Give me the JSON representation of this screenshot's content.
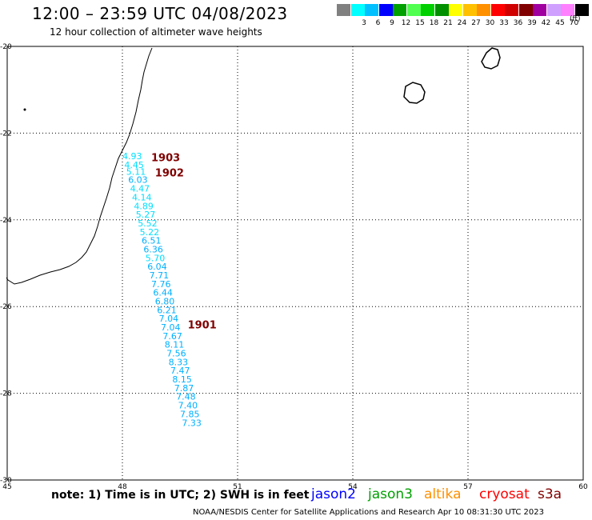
{
  "title": "12:00 – 23:59 UTC 04/08/2023",
  "subtitle": "12 hour collection of altimeter wave heights",
  "color_scale": {
    "unit": "(ft)",
    "swatches": [
      {
        "label": "",
        "color": "#808080"
      },
      {
        "label": "3",
        "color": "#00ffff"
      },
      {
        "label": "6",
        "color": "#00c0ff"
      },
      {
        "label": "9",
        "color": "#0000ff"
      },
      {
        "label": "12",
        "color": "#00a000"
      },
      {
        "label": "15",
        "color": "#50ff50"
      },
      {
        "label": "18",
        "color": "#00d000"
      },
      {
        "label": "21",
        "color": "#009000"
      },
      {
        "label": "24",
        "color": "#ffff00"
      },
      {
        "label": "27",
        "color": "#ffc000"
      },
      {
        "label": "30",
        "color": "#ff9000"
      },
      {
        "label": "33",
        "color": "#ff0000"
      },
      {
        "label": "36",
        "color": "#d00000"
      },
      {
        "label": "39",
        "color": "#800000"
      },
      {
        "label": "42",
        "color": "#a000a0"
      },
      {
        "label": "45",
        "color": "#d0a0ff"
      },
      {
        "label": "70",
        "color": "#ff80ff"
      },
      {
        "label": "",
        "color": "#000000"
      }
    ]
  },
  "map": {
    "lon_range": [
      45,
      60
    ],
    "lat_range": [
      -30,
      -20
    ],
    "lon_ticks": [
      "45",
      "48",
      "51",
      "54",
      "57",
      "60"
    ],
    "lat_ticks": [
      "-20",
      "-22",
      "-24",
      "-26",
      "-28",
      "-30"
    ],
    "gridlines": "dotted",
    "passes": [
      {
        "label": "1903",
        "lon": 48.75,
        "lat": -22.65
      },
      {
        "label": "1902",
        "lon": 48.85,
        "lat": -23.0
      },
      {
        "label": "1901",
        "lon": 49.7,
        "lat": -26.5
      }
    ],
    "observations": [
      {
        "value": "4.93",
        "lon": 48.0,
        "lat": -22.6
      },
      {
        "value": "4.45",
        "lon": 48.05,
        "lat": -22.8
      },
      {
        "value": "5.11",
        "lon": 48.1,
        "lat": -22.96
      },
      {
        "value": "6.03",
        "lon": 48.15,
        "lat": -23.15
      },
      {
        "value": "4.47",
        "lon": 48.2,
        "lat": -23.35
      },
      {
        "value": "4.14",
        "lon": 48.25,
        "lat": -23.55
      },
      {
        "value": "4.89",
        "lon": 48.3,
        "lat": -23.75
      },
      {
        "value": "5.27",
        "lon": 48.35,
        "lat": -23.95
      },
      {
        "value": "5.52",
        "lon": 48.4,
        "lat": -24.15
      },
      {
        "value": "5.22",
        "lon": 48.45,
        "lat": -24.35
      },
      {
        "value": "6.51",
        "lon": 48.5,
        "lat": -24.55
      },
      {
        "value": "6.36",
        "lon": 48.55,
        "lat": -24.75
      },
      {
        "value": "5.70",
        "lon": 48.6,
        "lat": -24.95
      },
      {
        "value": "6.04",
        "lon": 48.65,
        "lat": -25.15
      },
      {
        "value": "7.71",
        "lon": 48.7,
        "lat": -25.35
      },
      {
        "value": "7.76",
        "lon": 48.75,
        "lat": -25.55
      },
      {
        "value": "6.44",
        "lon": 48.8,
        "lat": -25.75
      },
      {
        "value": "6.80",
        "lon": 48.85,
        "lat": -25.95
      },
      {
        "value": "6.21",
        "lon": 48.9,
        "lat": -26.15
      },
      {
        "value": "7.04",
        "lon": 48.95,
        "lat": -26.35
      },
      {
        "value": "7.04",
        "lon": 49.0,
        "lat": -26.55
      },
      {
        "value": "7.67",
        "lon": 49.05,
        "lat": -26.75
      },
      {
        "value": "8.11",
        "lon": 49.1,
        "lat": -26.95
      },
      {
        "value": "7.56",
        "lon": 49.15,
        "lat": -27.15
      },
      {
        "value": "8.33",
        "lon": 49.2,
        "lat": -27.35
      },
      {
        "value": "7.47",
        "lon": 49.25,
        "lat": -27.55
      },
      {
        "value": "8.15",
        "lon": 49.3,
        "lat": -27.75
      },
      {
        "value": "7.87",
        "lon": 49.35,
        "lat": -27.95
      },
      {
        "value": "7.48",
        "lon": 49.4,
        "lat": -28.15
      },
      {
        "value": "7.40",
        "lon": 49.45,
        "lat": -28.35
      },
      {
        "value": "7.85",
        "lon": 49.5,
        "lat": -28.55
      },
      {
        "value": "7.33",
        "lon": 49.55,
        "lat": -28.75
      }
    ]
  },
  "note": "note:  1) Time is in UTC;  2) SWH is in feet",
  "satellites": [
    {
      "name": "jason2",
      "color": "#0000ff"
    },
    {
      "name": "jason3",
      "color": "#00a000"
    },
    {
      "name": "altika",
      "color": "#ff9000"
    },
    {
      "name": "cryosat",
      "color": "#ff0000"
    },
    {
      "name": "s3a",
      "color": "#800000"
    }
  ],
  "credit": "NOAA/NESDIS Center for Satellite Applications and Research    Apr 10 08:31:30 UTC 2023"
}
